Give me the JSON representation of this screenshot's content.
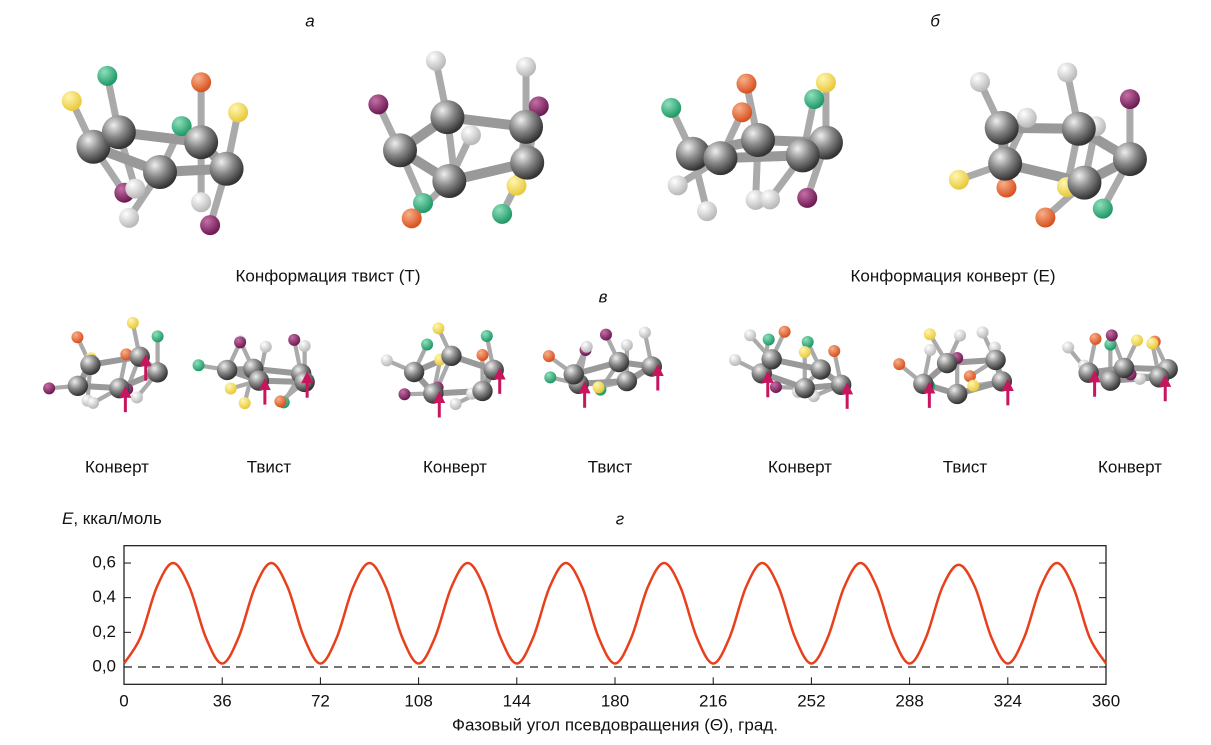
{
  "panel_labels": {
    "a": "а",
    "b": "б",
    "c": "в",
    "d": "г"
  },
  "top_captions": [
    "Конформация твист (Т)",
    "Конформация конверт (Е)"
  ],
  "conformations": [
    "Конверт",
    "Твист",
    "Конверт",
    "Твист",
    "Конверт",
    "Твист",
    "Конверт"
  ],
  "chart_data": {
    "type": "line",
    "y_label_var": "E",
    "y_label_unit": ", ккал/моль",
    "x_label": "Фазовый угол псевдовращения (Θ), град.",
    "x": [
      0,
      6,
      12,
      18,
      24,
      30,
      36,
      42,
      48,
      54,
      60,
      66,
      72,
      78,
      84,
      90,
      96,
      102,
      108,
      114,
      120,
      126,
      132,
      138,
      144,
      150,
      156,
      162,
      168,
      174,
      180,
      186,
      192,
      198,
      204,
      210,
      216,
      222,
      228,
      234,
      240,
      246,
      252,
      258,
      264,
      270,
      276,
      282,
      288,
      294,
      300,
      306,
      312,
      318,
      324,
      330,
      336,
      342,
      348,
      354,
      360
    ],
    "values": [
      0.02,
      0.17,
      0.46,
      0.6,
      0.46,
      0.17,
      0.02,
      0.17,
      0.46,
      0.6,
      0.46,
      0.17,
      0.02,
      0.17,
      0.46,
      0.6,
      0.46,
      0.17,
      0.02,
      0.17,
      0.46,
      0.6,
      0.46,
      0.17,
      0.02,
      0.17,
      0.46,
      0.6,
      0.46,
      0.17,
      0.02,
      0.17,
      0.46,
      0.6,
      0.46,
      0.17,
      0.02,
      0.17,
      0.46,
      0.6,
      0.46,
      0.17,
      0.02,
      0.17,
      0.46,
      0.6,
      0.46,
      0.17,
      0.02,
      0.17,
      0.46,
      0.59,
      0.46,
      0.17,
      0.02,
      0.17,
      0.46,
      0.6,
      0.46,
      0.17,
      0.02
    ],
    "color": "#e8401c",
    "xlim": [
      0,
      360
    ],
    "xticks": [
      0,
      36,
      72,
      108,
      144,
      180,
      216,
      252,
      288,
      324,
      360
    ],
    "ylim": [
      -0.1,
      0.7
    ],
    "yticks": [
      {
        "value": 0,
        "label": "0,0"
      },
      {
        "value": 0.2,
        "label": "0,2"
      },
      {
        "value": 0.4,
        "label": "0,4"
      },
      {
        "value": 0.6,
        "label": "0,6"
      }
    ],
    "reference_line": 0
  }
}
